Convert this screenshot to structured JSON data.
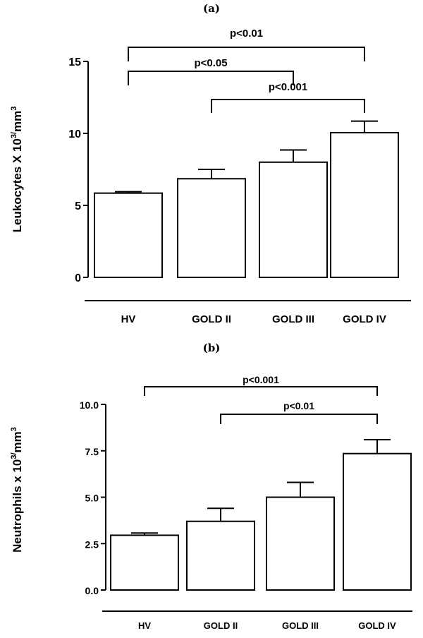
{
  "chart_data": [
    {
      "panel_label": "(a)",
      "type": "bar",
      "categories": [
        "HV",
        "GOLD II",
        "GOLD III",
        "GOLD IV"
      ],
      "values": [
        5.85,
        6.85,
        8.0,
        10.05
      ],
      "errors": [
        0.1,
        0.65,
        0.85,
        0.8
      ],
      "ylabel": "Leukocytes X 10",
      "ylabel_sup": "3/",
      "ylabel_unit": "mm",
      "ylabel_unit_sup": "3",
      "ylim": [
        0,
        15
      ],
      "yticks": [
        "0",
        "5",
        "10",
        "15"
      ],
      "ytick_values": [
        0,
        5,
        10,
        15
      ],
      "grid": false,
      "comparisons": [
        {
          "from": 0,
          "to": 3,
          "label": "p<0.01"
        },
        {
          "from": 0,
          "to": 2,
          "label": "p<0.05"
        },
        {
          "from": 1,
          "to": 3,
          "label": "p<0.001"
        }
      ]
    },
    {
      "panel_label": "(b)",
      "type": "bar",
      "categories": [
        "HV",
        "GOLD II",
        "GOLD III",
        "GOLD IV"
      ],
      "values": [
        2.95,
        3.7,
        5.0,
        7.35
      ],
      "errors": [
        0.12,
        0.7,
        0.8,
        0.75
      ],
      "ylabel": "Neutrophils x 10",
      "ylabel_sup": "3/",
      "ylabel_unit": "mm",
      "ylabel_unit_sup": "3",
      "ylim": [
        0,
        10
      ],
      "yticks": [
        "0.0",
        "2.5",
        "5.0",
        "7.5",
        "10.0"
      ],
      "ytick_values": [
        0,
        2.5,
        5,
        7.5,
        10
      ],
      "grid": false,
      "comparisons": [
        {
          "from": 0,
          "to": 3,
          "label": "p<0.001"
        },
        {
          "from": 1,
          "to": 3,
          "label": "p<0.01"
        }
      ]
    }
  ]
}
